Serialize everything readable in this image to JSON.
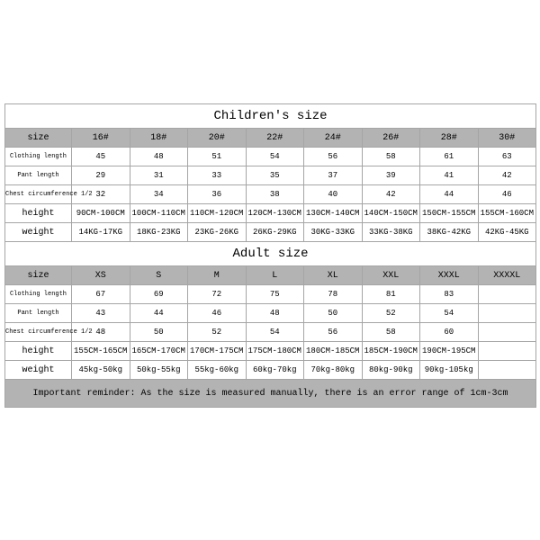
{
  "titles": {
    "children": "Children's size",
    "adult": "Adult size"
  },
  "row_labels": {
    "size": "size",
    "clothing_length": "Clothing length",
    "pant_length": "Pant length",
    "chest": "Chest circumference 1/2",
    "height": "height",
    "weight": "weight"
  },
  "children": {
    "size": [
      "16#",
      "18#",
      "20#",
      "22#",
      "24#",
      "26#",
      "28#",
      "30#"
    ],
    "cloth": [
      "45",
      "48",
      "51",
      "54",
      "56",
      "58",
      "61",
      "63"
    ],
    "pant": [
      "29",
      "31",
      "33",
      "35",
      "37",
      "39",
      "41",
      "42"
    ],
    "chest": [
      "32",
      "34",
      "36",
      "38",
      "40",
      "42",
      "44",
      "46"
    ],
    "height": [
      "90CM-100CM",
      "100CM-110CM",
      "110CM-120CM",
      "120CM-130CM",
      "130CM-140CM",
      "140CM-150CM",
      "150CM-155CM",
      "155CM-160CM"
    ],
    "weight": [
      "14KG-17KG",
      "18KG-23KG",
      "23KG-26KG",
      "26KG-29KG",
      "30KG-33KG",
      "33KG-38KG",
      "38KG-42KG",
      "42KG-45KG"
    ]
  },
  "adult": {
    "size": [
      "XS",
      "S",
      "M",
      "L",
      "XL",
      "XXL",
      "XXXL",
      "XXXXL"
    ],
    "cloth": [
      "67",
      "69",
      "72",
      "75",
      "78",
      "81",
      "83",
      ""
    ],
    "pant": [
      "43",
      "44",
      "46",
      "48",
      "50",
      "52",
      "54",
      ""
    ],
    "chest": [
      "48",
      "50",
      "52",
      "54",
      "56",
      "58",
      "60",
      ""
    ],
    "height": [
      "155CM-165CM",
      "165CM-170CM",
      "170CM-175CM",
      "175CM-180CM",
      "180CM-185CM",
      "185CM-190CM",
      "190CM-195CM",
      ""
    ],
    "weight": [
      "45kg-50kg",
      "50kg-55kg",
      "55kg-60kg",
      "60kg-70kg",
      "70kg-80kg",
      "80kg-90kg",
      "90kg-105kg",
      ""
    ]
  },
  "reminder": "Important reminder: As the size is measured manually, there is an error range of 1cm-3cm"
}
